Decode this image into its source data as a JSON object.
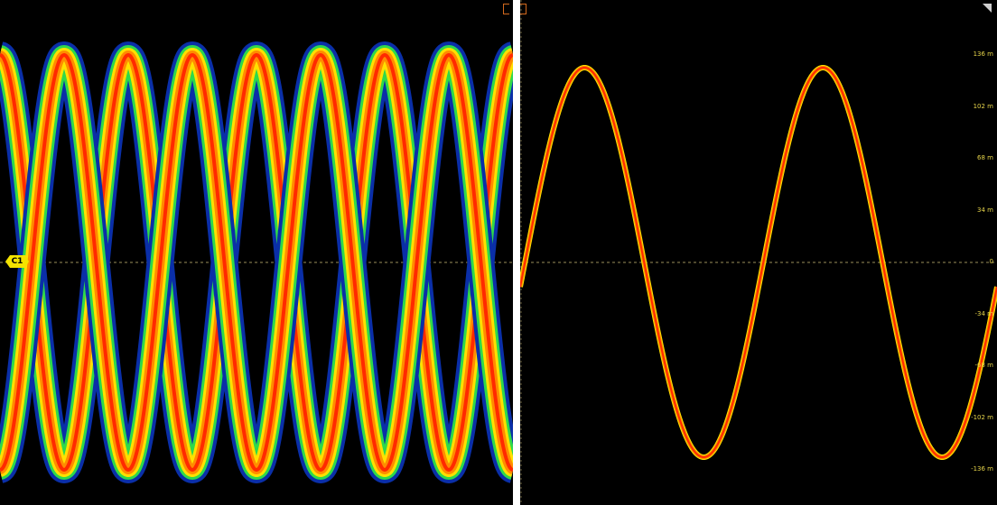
{
  "left_plot": {
    "channel_label": "C1",
    "channel_color": "#f4e300",
    "cycles": 4
  },
  "right_plot": {
    "cycles": 2,
    "y_axis_labels": [
      "136 m",
      "102 m",
      "68 m",
      "34 m",
      "0",
      "-34 m",
      "-68 m",
      "-102 m",
      "-136 m"
    ]
  },
  "colors": {
    "background": "#000000",
    "trace_hot": "#ff2a00",
    "trace_warm": "#ff8c00",
    "trace_mid": "#ffe000",
    "trace_cool": "#2ed94a",
    "trace_cold": "#0a2fa8",
    "reference_line": "#9a8f5a",
    "axis_label": "#e6d44a"
  }
}
